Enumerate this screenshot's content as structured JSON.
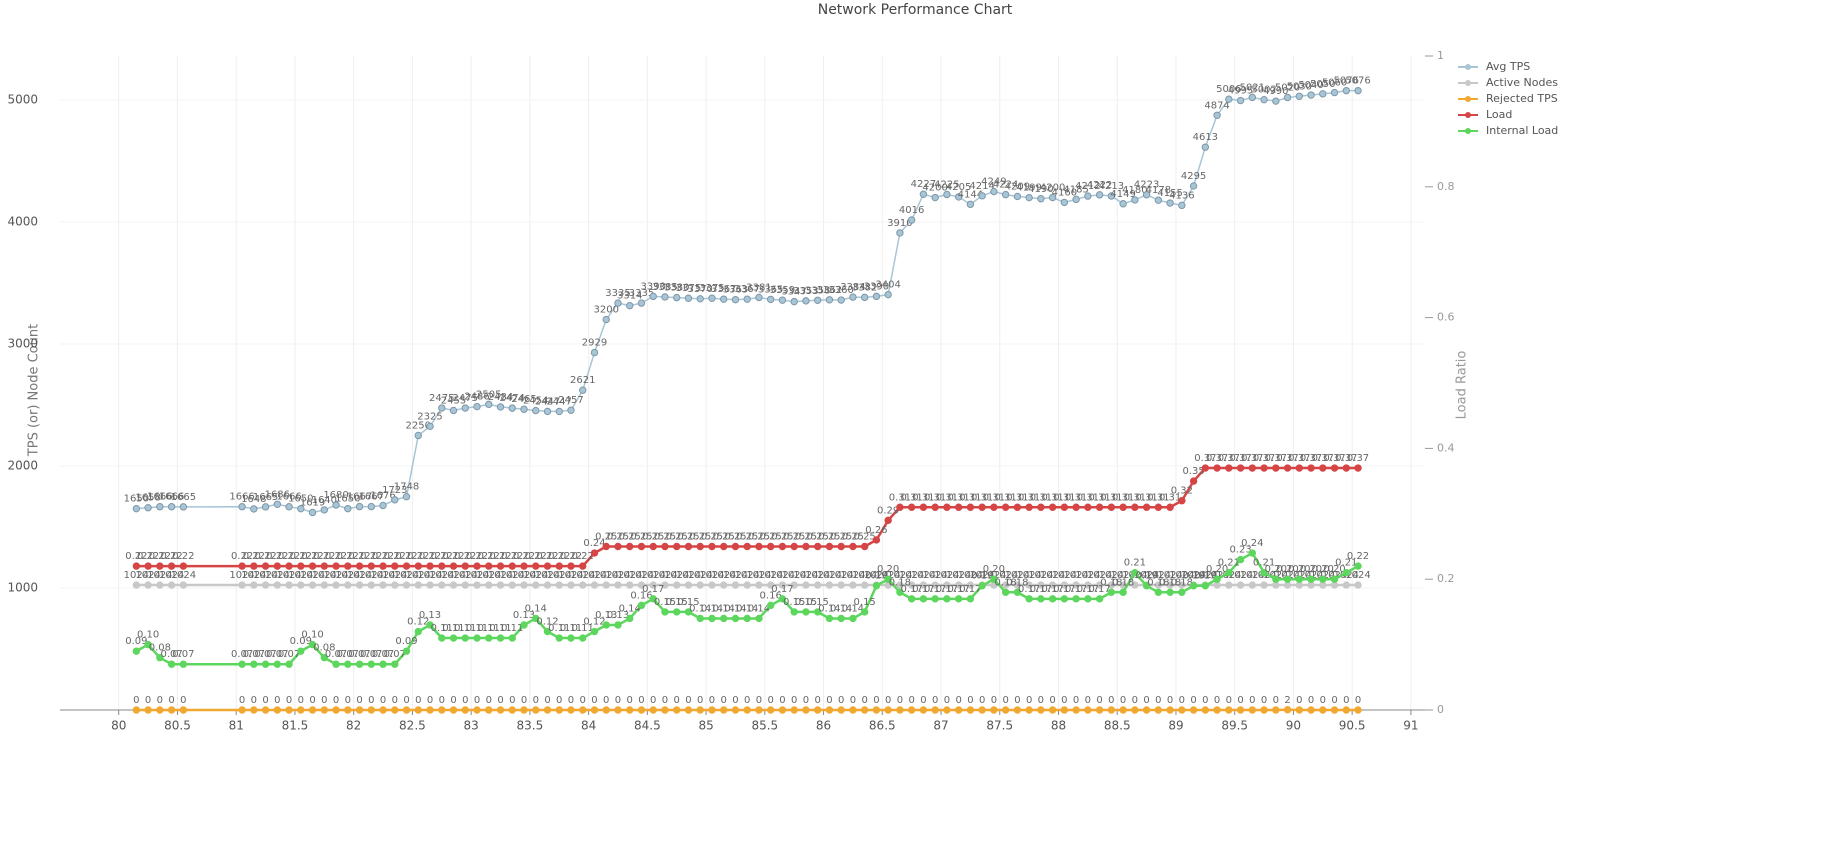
{
  "chart_data": {
    "type": "line",
    "title": "Network Performance Chart",
    "y_label": "TPS (or) Node Count",
    "y2_label": "Load Ratio",
    "x": [
      80.15,
      80.25,
      80.35,
      80.45,
      80.55,
      81.05,
      81.15,
      81.25,
      81.35,
      81.45,
      81.55,
      81.65,
      81.75,
      81.85,
      81.95,
      82.05,
      82.15,
      82.25,
      82.35,
      82.45,
      82.55,
      82.65,
      82.75,
      82.85,
      82.95,
      83.05,
      83.15,
      83.25,
      83.35,
      83.45,
      83.55,
      83.65,
      83.75,
      83.85,
      83.95,
      84.05,
      84.15,
      84.25,
      84.35,
      84.45,
      84.55,
      84.65,
      84.75,
      84.85,
      84.95,
      85.05,
      85.15,
      85.25,
      85.35,
      85.45,
      85.55,
      85.65,
      85.75,
      85.85,
      85.95,
      86.05,
      86.15,
      86.25,
      86.35,
      86.45,
      86.55,
      86.65,
      86.75,
      86.85,
      86.95,
      87.05,
      87.15,
      87.25,
      87.35,
      87.45,
      87.55,
      87.65,
      87.75,
      87.85,
      87.95,
      88.05,
      88.15,
      88.25,
      88.35,
      88.45,
      88.55,
      88.65,
      88.75,
      88.85,
      88.95,
      89.05,
      89.15,
      89.25,
      89.35,
      89.45,
      89.55,
      89.65,
      89.75,
      89.85,
      89.95,
      90.05,
      90.15,
      90.25,
      90.35,
      90.45,
      90.55
    ],
    "series": [
      {
        "name": "Avg TPS",
        "color": "#a8c5d6",
        "axis": "y",
        "values": [
          1650,
          1658,
          1666,
          1666,
          1665,
          1666,
          1648,
          1665,
          1686,
          1666,
          1650,
          1619,
          1640,
          1680,
          1650,
          1667,
          1667,
          1676,
          1723,
          1748,
          2250,
          2325,
          2475,
          2455,
          2475,
          2486,
          2505,
          2484,
          2474,
          2465,
          2454,
          2447,
          2447,
          2457,
          2621,
          2929,
          3200,
          3335,
          3314,
          3335,
          3390,
          3385,
          3380,
          3375,
          3370,
          3375,
          3367,
          3363,
          3367,
          3381,
          3365,
          3359,
          3347,
          3353,
          3358,
          3362,
          3360,
          3384,
          3382,
          3390,
          3404,
          3910,
          4016,
          4227,
          4200,
          4225,
          4205,
          4144,
          4214,
          4249,
          4224,
          4209,
          4199,
          4190,
          4200,
          4160,
          4185,
          4212,
          4222,
          4213,
          4149,
          4180,
          4223,
          4178,
          4155,
          4136,
          4295,
          4613,
          4874,
          5006,
          4995,
          5021,
          5002,
          4990,
          5020,
          5030,
          5040,
          5050,
          5060,
          5076,
          5076
        ]
      },
      {
        "name": "Active Nodes",
        "color": "#c8c8c8",
        "axis": "y",
        "values": [
          1024,
          1024,
          1024,
          1024,
          1024,
          1024,
          1024,
          1024,
          1024,
          1024,
          1024,
          1024,
          1024,
          1024,
          1024,
          1024,
          1024,
          1024,
          1024,
          1024,
          1024,
          1024,
          1024,
          1024,
          1024,
          1024,
          1024,
          1024,
          1024,
          1024,
          1024,
          1024,
          1024,
          1024,
          1024,
          1024,
          1024,
          1024,
          1024,
          1024,
          1024,
          1024,
          1024,
          1024,
          1024,
          1024,
          1024,
          1024,
          1024,
          1024,
          1024,
          1024,
          1024,
          1024,
          1024,
          1024,
          1024,
          1024,
          1024,
          1024,
          1024,
          1024,
          1024,
          1024,
          1024,
          1024,
          1024,
          1024,
          1024,
          1024,
          1024,
          1024,
          1024,
          1024,
          1024,
          1024,
          1024,
          1024,
          1024,
          1024,
          1024,
          1024,
          1024,
          1024,
          1024,
          1024,
          1024,
          1024,
          1024,
          1024,
          1024,
          1024,
          1024,
          1024,
          1024,
          1024,
          1024,
          1024,
          1024,
          1024,
          1024
        ]
      },
      {
        "name": "Rejected TPS",
        "color": "#f0a830",
        "axis": "y",
        "values": [
          0,
          0,
          0,
          0,
          0,
          0,
          0,
          0,
          0,
          0,
          0,
          0,
          0,
          0,
          0,
          0,
          0,
          0,
          0,
          0,
          0,
          0,
          0,
          0,
          0,
          0,
          0,
          0,
          0,
          0,
          0,
          0,
          0,
          0,
          0,
          0,
          0,
          0,
          0,
          0,
          0,
          0,
          0,
          0,
          0,
          0,
          0,
          0,
          0,
          0,
          0,
          0,
          0,
          0,
          0,
          0,
          0,
          0,
          0,
          0,
          0,
          0,
          0,
          0,
          0,
          0,
          0,
          0,
          0,
          0,
          0,
          0,
          0,
          0,
          0,
          0,
          0,
          0,
          0,
          0,
          0,
          0,
          0,
          0,
          0,
          0,
          0,
          0,
          0,
          0,
          0,
          0,
          0,
          0,
          2,
          0,
          0,
          0,
          0,
          0,
          0
        ]
      },
      {
        "name": "Load",
        "color": "#d64545",
        "axis": "y2",
        "values": [
          0.22,
          0.22,
          0.22,
          0.22,
          0.22,
          0.22,
          0.22,
          0.22,
          0.22,
          0.22,
          0.22,
          0.22,
          0.22,
          0.22,
          0.22,
          0.22,
          0.22,
          0.22,
          0.22,
          0.22,
          0.22,
          0.22,
          0.22,
          0.22,
          0.22,
          0.22,
          0.22,
          0.22,
          0.22,
          0.22,
          0.22,
          0.22,
          0.22,
          0.22,
          0.22,
          0.24,
          0.25,
          0.25,
          0.25,
          0.25,
          0.25,
          0.25,
          0.25,
          0.25,
          0.25,
          0.25,
          0.25,
          0.25,
          0.25,
          0.25,
          0.25,
          0.25,
          0.25,
          0.25,
          0.25,
          0.25,
          0.25,
          0.25,
          0.25,
          0.26,
          0.29,
          0.31,
          0.31,
          0.31,
          0.31,
          0.31,
          0.31,
          0.31,
          0.31,
          0.31,
          0.31,
          0.31,
          0.31,
          0.31,
          0.31,
          0.31,
          0.31,
          0.31,
          0.31,
          0.31,
          0.31,
          0.31,
          0.31,
          0.31,
          0.31,
          0.32,
          0.35,
          0.37,
          0.37,
          0.37,
          0.37,
          0.37,
          0.37,
          0.37,
          0.37,
          0.37,
          0.37,
          0.37,
          0.37,
          0.37,
          0.37
        ]
      },
      {
        "name": "Internal Load",
        "color": "#5cd65c",
        "axis": "y2",
        "values": [
          0.09,
          0.1,
          0.08,
          0.07,
          0.07,
          0.07,
          0.07,
          0.07,
          0.07,
          0.07,
          0.09,
          0.1,
          0.08,
          0.07,
          0.07,
          0.07,
          0.07,
          0.07,
          0.07,
          0.09,
          0.12,
          0.13,
          0.11,
          0.11,
          0.11,
          0.11,
          0.11,
          0.11,
          0.11,
          0.13,
          0.14,
          0.12,
          0.11,
          0.11,
          0.11,
          0.12,
          0.13,
          0.13,
          0.14,
          0.16,
          0.17,
          0.15,
          0.15,
          0.15,
          0.14,
          0.14,
          0.14,
          0.14,
          0.14,
          0.14,
          0.16,
          0.17,
          0.15,
          0.15,
          0.15,
          0.14,
          0.14,
          0.14,
          0.15,
          0.19,
          0.2,
          0.18,
          0.17,
          0.17,
          0.17,
          0.17,
          0.17,
          0.17,
          0.19,
          0.2,
          0.18,
          0.18,
          0.17,
          0.17,
          0.17,
          0.17,
          0.17,
          0.17,
          0.17,
          0.18,
          0.18,
          0.21,
          0.19,
          0.18,
          0.18,
          0.18,
          0.19,
          0.19,
          0.2,
          0.21,
          0.23,
          0.24,
          0.21,
          0.2,
          0.2,
          0.2,
          0.2,
          0.2,
          0.2,
          0.21,
          0.22
        ],
        "value_labels": [
          "0.09",
          "0.10",
          "0.08",
          "0.07",
          "0.07",
          "0.07",
          "0.07",
          "0.07",
          "0.07",
          "0.07",
          "0.09",
          "0.10",
          "0.08",
          "0.07",
          "0.07",
          "0.07",
          "0.07",
          "0.07",
          "0.07",
          "0.09",
          "0.12",
          "0.13",
          "0.11",
          "0.11",
          "0.11",
          "0.11",
          "0.11",
          "0.11",
          "0.11",
          "0.13",
          "0.14",
          "0.12",
          "0.11",
          "0.11",
          "0.11",
          "0.12",
          "0.13",
          "0.13",
          "0.14",
          "0.16",
          "0.17",
          "0.15",
          "0.15",
          "0.15",
          "0.14",
          "0.14",
          "0.14",
          "0.14",
          "0.14",
          "0.14",
          "0.16",
          "0.17",
          "0.15",
          "0.15",
          "0.15",
          "0.14",
          "0.14",
          "0.14",
          "0.15",
          "0.19",
          "0.20",
          "0.18",
          "0.17",
          "0.17",
          "0.17",
          "0.17",
          "0.17",
          "0.17",
          "0.19",
          "0.20",
          "0.18",
          "0.18",
          "0.17",
          "0.17",
          "0.17",
          "0.17",
          "0.17",
          "0.17",
          "0.17",
          "0.18",
          "0.18",
          "0.21",
          "0.19",
          "0.18",
          "0.18",
          "0.18",
          "0.19",
          "0.19",
          "0.20",
          "0.21",
          "0.23",
          "0.24",
          "0.21",
          "0.20",
          "0.20",
          "0.20",
          "0.20",
          "0.20",
          "0.20",
          "0.21",
          "0.22"
        ]
      }
    ],
    "xlim": [
      79.5,
      91.12
    ],
    "xticks": [
      80,
      80.5,
      81,
      81.5,
      82,
      82.5,
      83,
      83.5,
      84,
      84.5,
      85,
      85.5,
      86,
      86.5,
      87,
      87.5,
      88,
      88.5,
      89,
      89.5,
      90,
      90.5,
      91
    ],
    "ylim": [
      0,
      5360
    ],
    "yticks": [
      1000,
      2000,
      3000,
      4000,
      5000
    ],
    "y2lim": [
      0,
      1
    ],
    "y2ticks": [
      0,
      0.2,
      0.4,
      0.6,
      0.8,
      1
    ],
    "grid": true,
    "legend": "top-right"
  }
}
